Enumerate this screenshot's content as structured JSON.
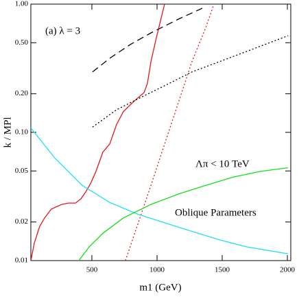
{
  "chart_data": {
    "type": "line",
    "x_label": "m1 (GeV)",
    "y_label": "k / MPl",
    "annotations": [
      "(a) λ = 3",
      "Λπ < 10 TeV",
      "Oblique Parameters"
    ],
    "xlim": [
      32,
      2026
    ],
    "ylim": [
      0.01,
      1.0
    ],
    "log_y": true,
    "xticks": [
      500,
      1000,
      1500,
      2000
    ],
    "yticks": [
      0.01,
      0.02,
      0.05,
      {
        "value": 0.1,
        "label": "0.10"
      },
      {
        "value": 0.2,
        "label": "0.20"
      },
      {
        "value": 0.5,
        "label": "0.50"
      },
      {
        "value": 1.0,
        "label": "1.00"
      }
    ],
    "series": [
      {
        "color": "#e8141c",
        "dash": "solid",
        "x": [
          32,
          58,
          100,
          137,
          189,
          268,
          321,
          374,
          416,
          453,
          489,
          532,
          584,
          637,
          689,
          742,
          821,
          900,
          926,
          953,
          995,
          1058
        ],
        "values": [
          0.01,
          0.0136,
          0.0185,
          0.0215,
          0.0252,
          0.0274,
          0.0281,
          0.0281,
          0.0303,
          0.0343,
          0.0397,
          0.0496,
          0.07,
          0.081,
          0.115,
          0.145,
          0.174,
          0.204,
          0.24,
          0.356,
          0.547,
          1.0
        ]
      },
      {
        "color": "#e8141c",
        "dash": "dotted",
        "x": [
          758,
          847,
          953,
          1058,
          1163,
          1268,
          1374,
          1437
        ],
        "values": [
          0.01,
          0.0185,
          0.0386,
          0.081,
          0.17,
          0.356,
          0.658,
          1.0
        ]
      },
      {
        "color": "#1ee0f0",
        "dash": "solid",
        "x": [
          32,
          216,
          426,
          637,
          847,
          1058,
          1268,
          1479,
          1689,
          2005
        ],
        "values": [
          0.108,
          0.063,
          0.0386,
          0.0284,
          0.0231,
          0.0197,
          0.0169,
          0.0145,
          0.0128,
          0.0113
        ]
      },
      {
        "color": "#12e012",
        "dash": "solid",
        "x": [
          400,
          479,
          584,
          742,
          953,
          1163,
          1374,
          1584,
          1795,
          2005
        ],
        "values": [
          0.01,
          0.0128,
          0.0163,
          0.0215,
          0.0274,
          0.033,
          0.0386,
          0.0448,
          0.0496,
          0.053
        ]
      },
      {
        "color": "#000000",
        "dash": "dashed",
        "x": [
          505,
          637,
          795,
          953,
          1163,
          1347
        ],
        "values": [
          0.296,
          0.378,
          0.484,
          0.596,
          0.763,
          0.929
        ]
      },
      {
        "color": "#000000",
        "dash": "dotted",
        "x": [
          505,
          689,
          847,
          1058,
          1268,
          1479,
          1689,
          2005
        ],
        "values": [
          0.11,
          0.15,
          0.181,
          0.231,
          0.296,
          0.356,
          0.428,
          0.567
        ]
      }
    ]
  }
}
